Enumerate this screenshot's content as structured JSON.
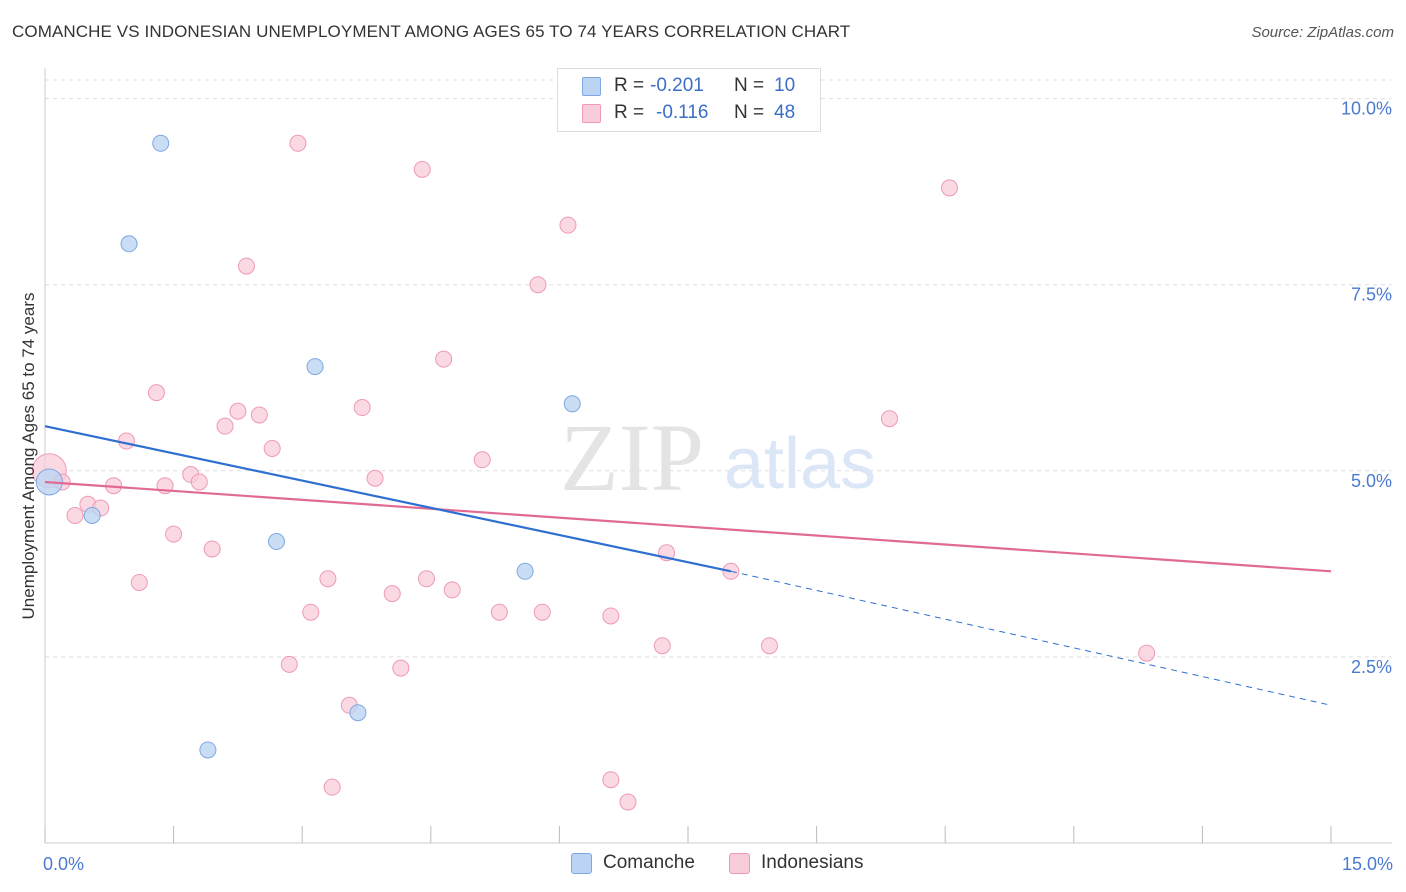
{
  "title": "COMANCHE VS INDONESIAN UNEMPLOYMENT AMONG AGES 65 TO 74 YEARS CORRELATION CHART",
  "source": "Source: ZipAtlas.com",
  "watermark": {
    "zip": "ZIP",
    "atlas": "atlas"
  },
  "legend_top": {
    "comanche": {
      "r_label": "R =",
      "r_value": "-0.201",
      "n_label": "N =",
      "n_value": "10"
    },
    "indonesians": {
      "r_label": "R =",
      "r_value": "-0.116",
      "n_label": "N =",
      "n_value": "48"
    }
  },
  "legend_bottom": {
    "comanche": "Comanche",
    "indonesians": "Indonesians"
  },
  "colors": {
    "comanche_fill": "#bcd4f3",
    "comanche_stroke": "#7fa8e0",
    "comanche_line": "#2f6fcf",
    "indonesians_fill": "#f9ccda",
    "indonesians_stroke": "#ee9ab5",
    "indonesians_line": "#e06a93",
    "tick_label": "#4a7bd0",
    "grid": "#dddddd"
  },
  "chart_data": {
    "type": "scatter",
    "title": "COMANCHE VS INDONESIAN UNEMPLOYMENT AMONG AGES 65 TO 74 YEARS CORRELATION CHART",
    "xlabel": "",
    "ylabel": "Unemployment Among Ages 65 to 74 years",
    "xlim": [
      0,
      15
    ],
    "ylim": [
      0,
      10.25
    ],
    "x_tick_labels": [
      "0.0%",
      "15.0%"
    ],
    "y_ticks": [
      2.5,
      5.0,
      7.5,
      10.0
    ],
    "y_tick_labels": [
      "2.5%",
      "5.0%",
      "7.5%",
      "10.0%"
    ],
    "grid": true,
    "series": [
      {
        "name": "Comanche",
        "points": [
          [
            0.05,
            4.85
          ],
          [
            1.35,
            9.4
          ],
          [
            0.98,
            8.05
          ],
          [
            3.15,
            6.4
          ],
          [
            6.15,
            5.9
          ],
          [
            0.55,
            4.4
          ],
          [
            2.7,
            4.05
          ],
          [
            5.6,
            3.65
          ],
          [
            3.65,
            1.75
          ],
          [
            1.9,
            1.25
          ]
        ],
        "trend": {
          "x": [
            0,
            8.0
          ],
          "y": [
            5.6,
            3.65
          ],
          "dashed_to": [
            15,
            1.85
          ]
        }
      },
      {
        "name": "Indonesians",
        "points": [
          [
            0.05,
            5.0
          ],
          [
            0.2,
            4.85
          ],
          [
            0.35,
            4.4
          ],
          [
            0.5,
            4.55
          ],
          [
            0.65,
            4.5
          ],
          [
            0.8,
            4.8
          ],
          [
            0.95,
            5.4
          ],
          [
            1.1,
            3.5
          ],
          [
            1.3,
            6.05
          ],
          [
            1.4,
            4.8
          ],
          [
            1.5,
            4.15
          ],
          [
            1.7,
            4.95
          ],
          [
            1.8,
            4.85
          ],
          [
            1.95,
            3.95
          ],
          [
            2.1,
            5.6
          ],
          [
            2.25,
            5.8
          ],
          [
            2.35,
            7.75
          ],
          [
            2.5,
            5.75
          ],
          [
            2.65,
            5.3
          ],
          [
            2.85,
            2.4
          ],
          [
            2.95,
            9.4
          ],
          [
            3.1,
            3.1
          ],
          [
            3.3,
            3.55
          ],
          [
            3.35,
            0.75
          ],
          [
            3.55,
            1.85
          ],
          [
            3.7,
            5.85
          ],
          [
            3.85,
            4.9
          ],
          [
            4.05,
            3.35
          ],
          [
            4.15,
            2.35
          ],
          [
            4.4,
            9.05
          ],
          [
            4.45,
            3.55
          ],
          [
            4.65,
            6.5
          ],
          [
            4.75,
            3.4
          ],
          [
            5.1,
            5.15
          ],
          [
            5.3,
            3.1
          ],
          [
            5.75,
            7.5
          ],
          [
            5.8,
            3.1
          ],
          [
            6.1,
            8.3
          ],
          [
            6.6,
            0.85
          ],
          [
            6.6,
            3.05
          ],
          [
            6.8,
            0.55
          ],
          [
            7.2,
            2.65
          ],
          [
            7.25,
            3.9
          ],
          [
            8.0,
            3.65
          ],
          [
            8.45,
            2.65
          ],
          [
            9.85,
            5.7
          ],
          [
            10.55,
            8.8
          ],
          [
            12.85,
            2.55
          ]
        ],
        "trend": {
          "x": [
            0,
            15
          ],
          "y": [
            4.85,
            3.65
          ]
        }
      }
    ]
  }
}
